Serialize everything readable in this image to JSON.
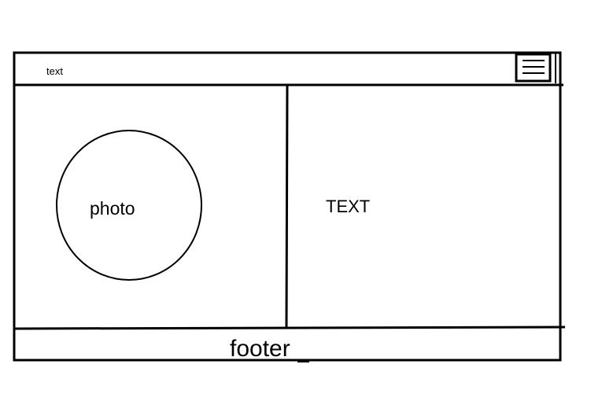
{
  "header": {
    "text": "text",
    "menu_icon": "hamburger-menu-icon"
  },
  "left_panel": {
    "photo_label": "photo"
  },
  "right_panel": {
    "text": "TEXT"
  },
  "footer": {
    "text": "footer"
  },
  "colors": {
    "stroke": "#000000",
    "background": "#ffffff"
  }
}
